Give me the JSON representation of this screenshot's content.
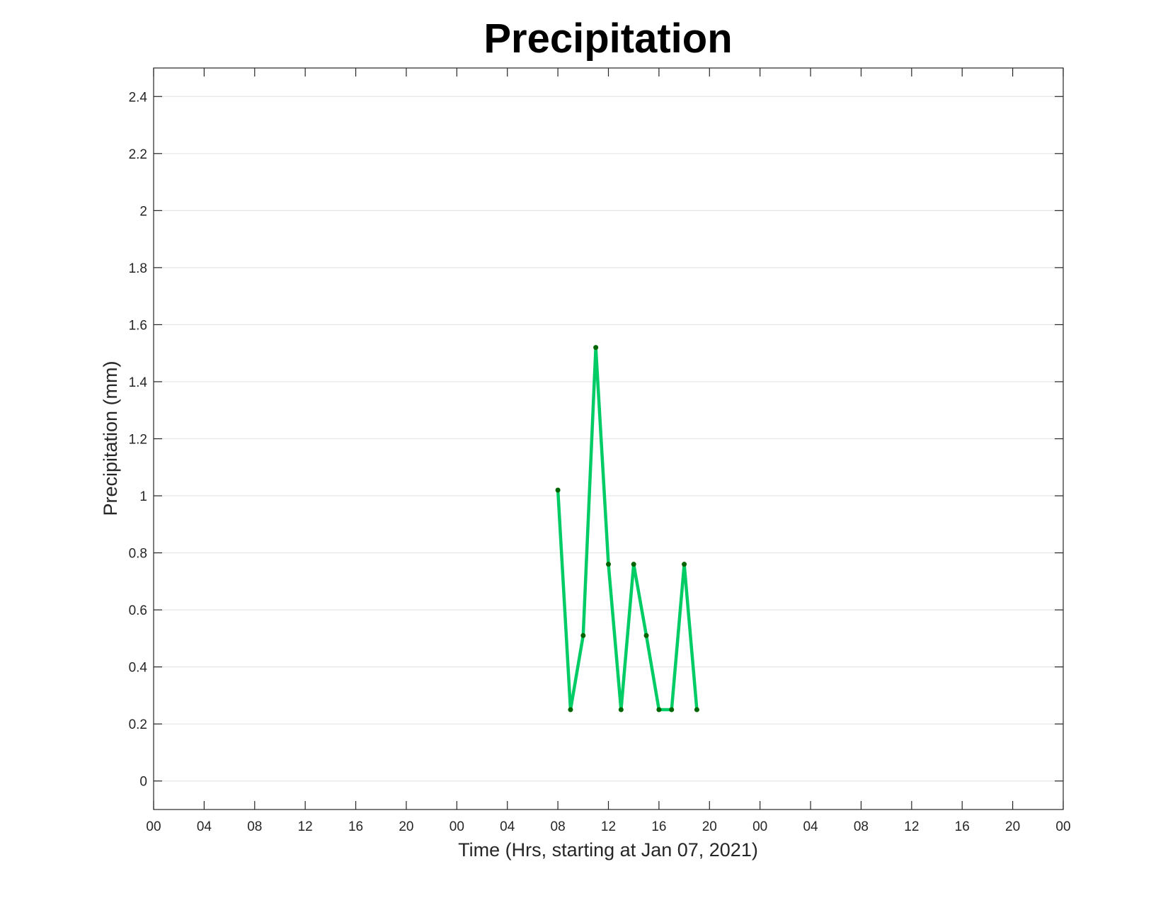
{
  "chart_data": {
    "type": "line",
    "title": "Precipitation",
    "xlabel": "Time (Hrs, starting at Jan 07, 2021)",
    "ylabel": "Precipitation (mm)",
    "x_unit": "hours",
    "xlim": [
      0,
      72
    ],
    "ylim": [
      -0.1,
      2.5
    ],
    "x_ticks": [
      0,
      4,
      8,
      12,
      16,
      20,
      24,
      28,
      32,
      36,
      40,
      44,
      48,
      52,
      56,
      60,
      64,
      68,
      72
    ],
    "x_tick_labels": [
      "00",
      "04",
      "08",
      "12",
      "16",
      "20",
      "00",
      "04",
      "08",
      "12",
      "16",
      "20",
      "00",
      "04",
      "08",
      "12",
      "16",
      "20",
      "00"
    ],
    "y_ticks": [
      0,
      0.2,
      0.4,
      0.6,
      0.8,
      1,
      1.2,
      1.4,
      1.6,
      1.8,
      2,
      2.2,
      2.4
    ],
    "y_tick_labels": [
      "0",
      "0.2",
      "0.4",
      "0.6",
      "0.8",
      "1",
      "1.2",
      "1.4",
      "1.6",
      "1.8",
      "2",
      "2.2",
      "2.4"
    ],
    "grid": "horizontal",
    "series": [
      {
        "x": [
          32,
          33,
          34,
          35,
          36,
          37,
          38,
          39,
          40,
          41,
          42,
          43
        ],
        "values": [
          1.02,
          0.25,
          0.51,
          1.52,
          0.76,
          0.25,
          0.76,
          0.51,
          0.25,
          0.25,
          0.76,
          0.25
        ],
        "line_color": "#00cc66",
        "marker_color": "#006400"
      }
    ]
  }
}
